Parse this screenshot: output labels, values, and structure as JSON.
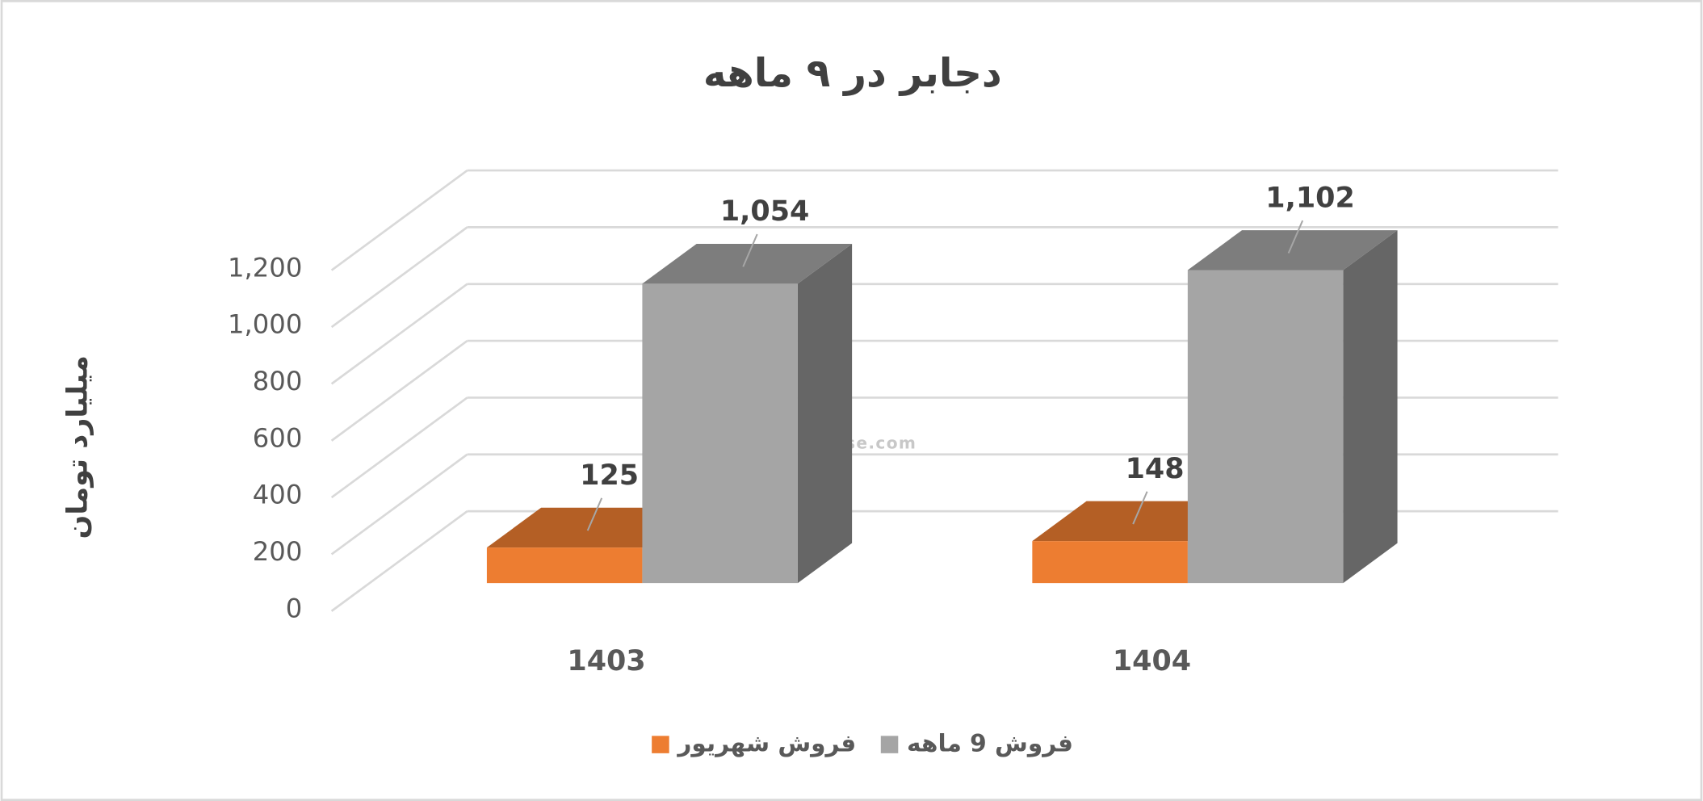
{
  "chart_data": {
    "type": "bar",
    "title": "دجابر در ۹ ماهه",
    "y_axis_label": "میلیارد تومان",
    "categories": [
      "1403",
      "1404"
    ],
    "series": [
      {
        "name": "فروش شهریور",
        "color": "#ED7D31",
        "values": [
          125,
          148
        ]
      },
      {
        "name": "فروش 9 ماهه",
        "color": "#A5A5A5",
        "values": [
          1054,
          1102
        ],
        "value_labels": [
          "1,054",
          "1,102"
        ]
      }
    ],
    "ylim": [
      0,
      1200
    ],
    "yticks": [
      0,
      200,
      400,
      600,
      800,
      {
        "value": 1000,
        "label": "1,000"
      },
      {
        "value": 1200,
        "label": "1,200"
      }
    ],
    "grid": true,
    "legend": "bottom",
    "watermark": "nabzebourse.com"
  }
}
